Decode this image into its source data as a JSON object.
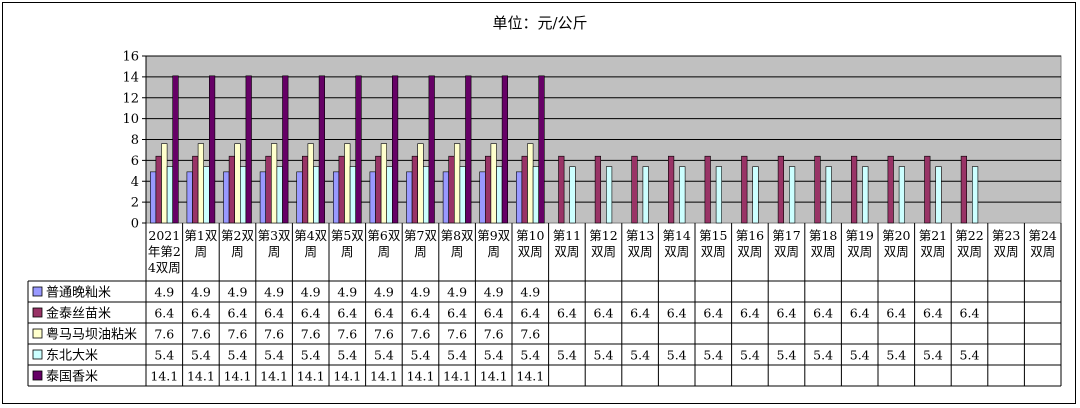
{
  "chart_data": {
    "type": "bar",
    "title": "单位：元/公斤",
    "ylim": [
      0,
      16
    ],
    "ystep": 2,
    "grid": true,
    "legend_position": "table-left",
    "categories": [
      [
        "2021",
        "年第2",
        "4双周"
      ],
      [
        "第1双",
        "周"
      ],
      [
        "第2双",
        "周"
      ],
      [
        "第3双",
        "周"
      ],
      [
        "第4双",
        "周"
      ],
      [
        "第5双",
        "周"
      ],
      [
        "第6双",
        "周"
      ],
      [
        "第7双",
        "周"
      ],
      [
        "第8双",
        "周"
      ],
      [
        "第9双",
        "周"
      ],
      [
        "第10",
        "双周"
      ],
      [
        "第11",
        "双周"
      ],
      [
        "第12",
        "双周"
      ],
      [
        "第13",
        "双周"
      ],
      [
        "第14",
        "双周"
      ],
      [
        "第15",
        "双周"
      ],
      [
        "第16",
        "双周"
      ],
      [
        "第17",
        "双周"
      ],
      [
        "第18",
        "双周"
      ],
      [
        "第19",
        "双周"
      ],
      [
        "第20",
        "双周"
      ],
      [
        "第21",
        "双周"
      ],
      [
        "第22",
        "双周"
      ],
      [
        "第23",
        "双周"
      ],
      [
        "第24",
        "双周"
      ]
    ],
    "series": [
      {
        "name": "普通晚籼米",
        "color": "#9999ff",
        "values": [
          4.9,
          4.9,
          4.9,
          4.9,
          4.9,
          4.9,
          4.9,
          4.9,
          4.9,
          4.9,
          4.9,
          null,
          null,
          null,
          null,
          null,
          null,
          null,
          null,
          null,
          null,
          null,
          null,
          null,
          null
        ]
      },
      {
        "name": "金泰丝苗米",
        "color": "#993366",
        "values": [
          6.4,
          6.4,
          6.4,
          6.4,
          6.4,
          6.4,
          6.4,
          6.4,
          6.4,
          6.4,
          6.4,
          6.4,
          6.4,
          6.4,
          6.4,
          6.4,
          6.4,
          6.4,
          6.4,
          6.4,
          6.4,
          6.4,
          6.4,
          null,
          null
        ]
      },
      {
        "name": "粤马马坝油粘米",
        "color": "#ffffcc",
        "values": [
          7.6,
          7.6,
          7.6,
          7.6,
          7.6,
          7.6,
          7.6,
          7.6,
          7.6,
          7.6,
          7.6,
          null,
          null,
          null,
          null,
          null,
          null,
          null,
          null,
          null,
          null,
          null,
          null,
          null,
          null
        ]
      },
      {
        "name": "东北大米",
        "color": "#ccffff",
        "values": [
          5.4,
          5.4,
          5.4,
          5.4,
          5.4,
          5.4,
          5.4,
          5.4,
          5.4,
          5.4,
          5.4,
          5.4,
          5.4,
          5.4,
          5.4,
          5.4,
          5.4,
          5.4,
          5.4,
          5.4,
          5.4,
          5.4,
          5.4,
          null,
          null
        ]
      },
      {
        "name": "泰国香米",
        "color": "#660066",
        "values": [
          14.1,
          14.1,
          14.1,
          14.1,
          14.1,
          14.1,
          14.1,
          14.1,
          14.1,
          14.1,
          14.1,
          null,
          null,
          null,
          null,
          null,
          null,
          null,
          null,
          null,
          null,
          null,
          null,
          null,
          null
        ]
      }
    ]
  }
}
